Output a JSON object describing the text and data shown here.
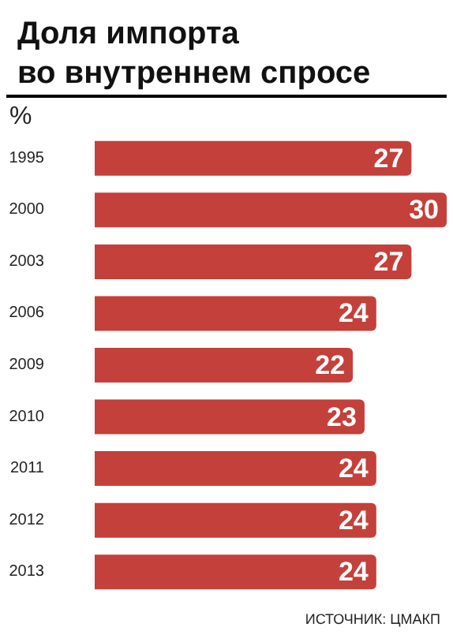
{
  "chart_data": {
    "type": "bar",
    "orientation": "horizontal",
    "title": "Доля импорта\nво внутреннем спросе",
    "xlabel": "%",
    "categories": [
      "1995",
      "2000",
      "2003",
      "2006",
      "2009",
      "2010",
      "2011",
      "2012",
      "2013"
    ],
    "values": [
      27,
      30,
      27,
      24,
      22,
      23,
      24,
      24,
      24
    ],
    "color": "#c4403a",
    "data_labels": true,
    "annotations": [
      "ИСТОЧНИК: ЦМАКП"
    ]
  }
}
